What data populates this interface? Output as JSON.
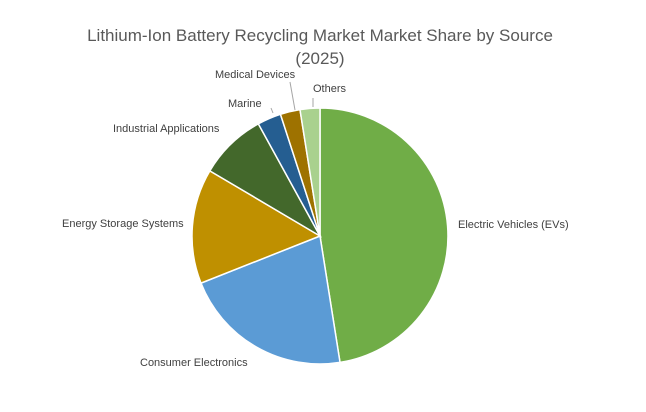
{
  "chart_data": {
    "type": "pie",
    "title": "Lithium-Ion Battery Recycling Market Market Share by Source",
    "subtitle": "(2025)",
    "categories": [
      "Electric Vehicles (EVs)",
      "Consumer Electronics",
      "Energy Storage Systems",
      "Industrial Applications",
      "Marine",
      "Medical Devices",
      "Others"
    ],
    "values": [
      47.5,
      21.5,
      14.5,
      8.5,
      3.0,
      2.5,
      2.5
    ],
    "colors": [
      "#70ad47",
      "#5b9bd5",
      "#bf9000",
      "#43682b",
      "#255e91",
      "#9e7200",
      "#a9d18e"
    ],
    "legend": "none",
    "data_labels": "category names outside slices"
  }
}
